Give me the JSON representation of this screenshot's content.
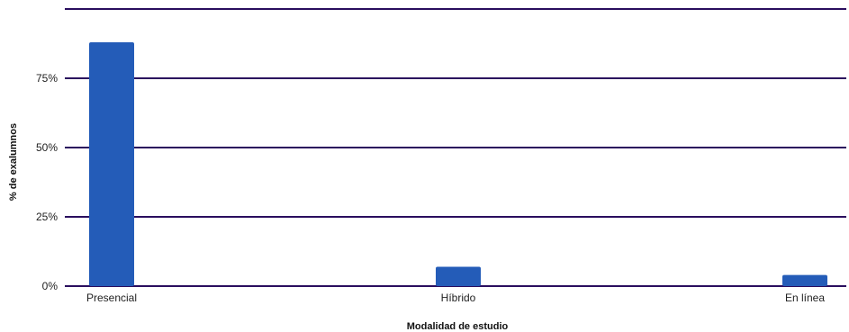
{
  "chart_data": {
    "type": "bar",
    "categories": [
      "Presencial",
      "Híbrido",
      "En línea"
    ],
    "values": [
      88,
      7,
      4
    ],
    "xlabel": "Modalidad de estudio",
    "ylabel": "% de exalumnos",
    "ylim": [
      0,
      100
    ],
    "yticks": [
      "0%",
      "25%",
      "50%",
      "75%"
    ],
    "grid": true,
    "legend": "none",
    "colors": {
      "bar": "#245cb8",
      "grid": "#2a0e5e"
    }
  }
}
